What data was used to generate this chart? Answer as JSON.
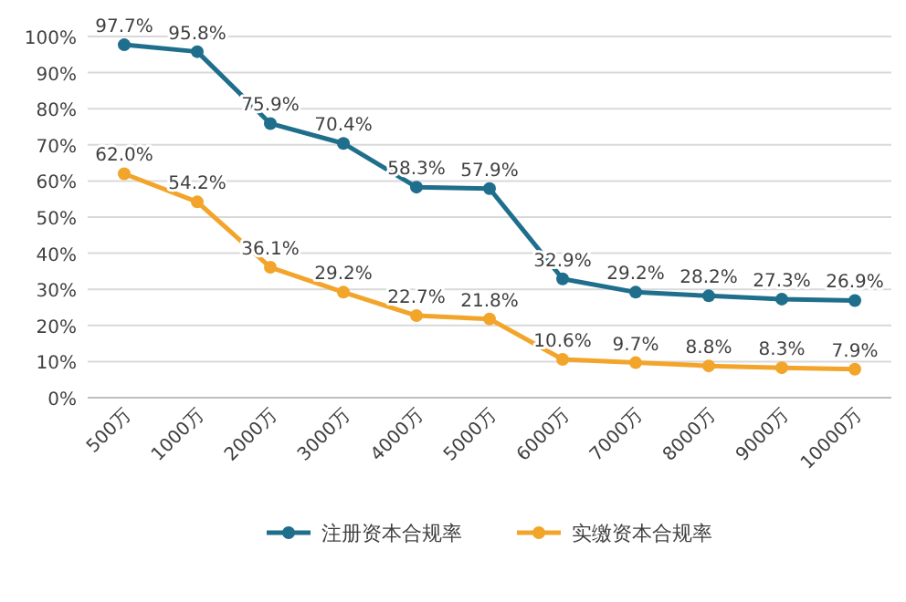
{
  "chart_data": {
    "type": "line",
    "categories": [
      "500万",
      "1000万",
      "2000万",
      "3000万",
      "4000万",
      "5000万",
      "6000万",
      "7000万",
      "8000万",
      "9000万",
      "10000万"
    ],
    "series": [
      {
        "name": "注册资本合规率",
        "color": "#1f6e8c",
        "values": [
          97.7,
          95.8,
          75.9,
          70.4,
          58.3,
          57.9,
          32.9,
          29.2,
          28.2,
          27.3,
          26.9
        ],
        "value_labels": [
          "97.7%",
          "95.8%",
          "75.9%",
          "70.4%",
          "58.3%",
          "57.9%",
          "32.9%",
          "29.2%",
          "28.2%",
          "27.3%",
          "26.9%"
        ]
      },
      {
        "name": "实缴资本合规率",
        "color": "#f2a52a",
        "values": [
          62.0,
          54.2,
          36.1,
          29.2,
          22.7,
          21.8,
          10.6,
          9.7,
          8.8,
          8.3,
          7.9
        ],
        "value_labels": [
          "62.0%",
          "54.2%",
          "36.1%",
          "29.2%",
          "22.7%",
          "21.8%",
          "10.6%",
          "9.7%",
          "8.8%",
          "8.3%",
          "7.9%"
        ]
      }
    ],
    "ylim": [
      0,
      100
    ],
    "yticks": [
      {
        "value": 0,
        "label": "0%"
      },
      {
        "value": 10,
        "label": "10%"
      },
      {
        "value": 20,
        "label": "20%"
      },
      {
        "value": 30,
        "label": "30%"
      },
      {
        "value": 40,
        "label": "40%"
      },
      {
        "value": 50,
        "label": "50%"
      },
      {
        "value": 60,
        "label": "60%"
      },
      {
        "value": 70,
        "label": "70%"
      },
      {
        "value": 80,
        "label": "80%"
      },
      {
        "value": 90,
        "label": "90%"
      },
      {
        "value": 100,
        "label": "100%"
      }
    ],
    "grid": "y",
    "marker": "circle",
    "line_style": "solid",
    "legend": "bottom"
  }
}
